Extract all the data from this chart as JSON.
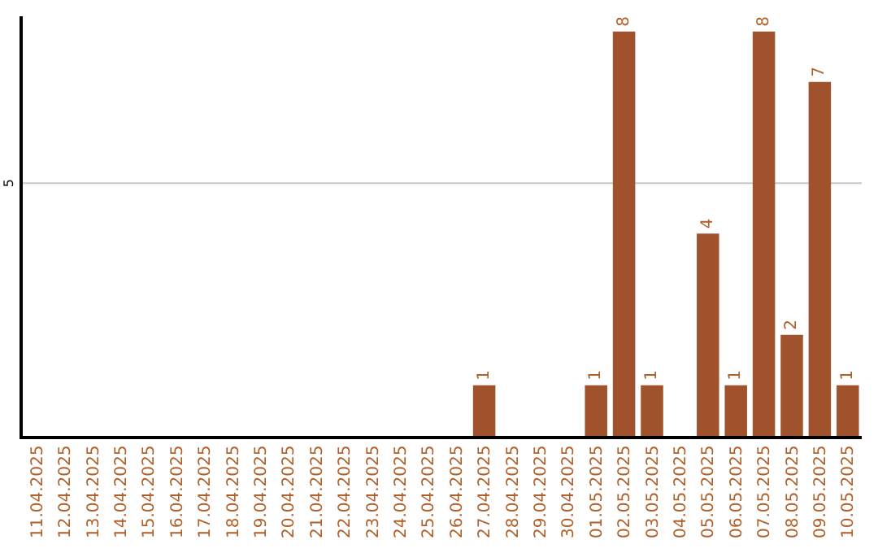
{
  "chart_data": {
    "type": "bar",
    "ylim": [
      0,
      8.3
    ],
    "categories": [
      "11.04.2025",
      "12.04.2025",
      "13.04.2025",
      "14.04.2025",
      "15.04.2025",
      "16.04.2025",
      "17.04.2025",
      "18.04.2025",
      "19.04.2025",
      "20.04.2025",
      "21.04.2025",
      "22.04.2025",
      "23.04.2025",
      "24.04.2025",
      "25.04.2025",
      "26.04.2025",
      "27.04.2025",
      "28.04.2025",
      "29.04.2025",
      "30.04.2025",
      "01.05.2025",
      "02.05.2025",
      "03.05.2025",
      "04.05.2025",
      "05.05.2025",
      "06.05.2025",
      "07.05.2025",
      "08.05.2025",
      "09.05.2025",
      "10.05.2025"
    ],
    "values": [
      null,
      null,
      null,
      null,
      null,
      null,
      null,
      null,
      null,
      null,
      null,
      null,
      null,
      null,
      null,
      null,
      1,
      null,
      null,
      null,
      1,
      8,
      1,
      null,
      4,
      1,
      8,
      2,
      7,
      1
    ],
    "value_labels": [
      null,
      null,
      null,
      null,
      null,
      null,
      null,
      null,
      null,
      null,
      null,
      null,
      null,
      null,
      null,
      null,
      "1",
      null,
      null,
      null,
      "1",
      "8",
      "1",
      null,
      "4",
      "1",
      "8",
      "2",
      "7",
      "1"
    ],
    "color": "#a0522d",
    "ref_lines": [
      {
        "axis": "y",
        "value": 5,
        "label": "5",
        "color": "#c8c8c8"
      }
    ],
    "legend": false
  }
}
